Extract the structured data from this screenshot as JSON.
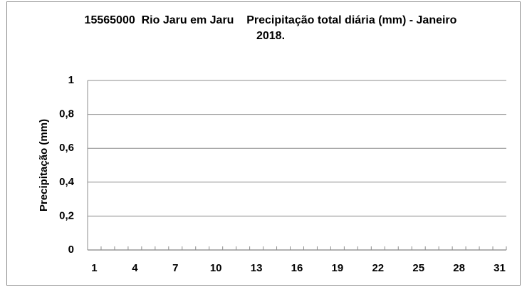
{
  "chart_data": {
    "type": "bar",
    "title": "15565000  Rio Jaru em Jaru    Precipitação total diária (mm) - Janeiro  2018.",
    "y_label": "Precipitação (mm)",
    "categories": [
      "1",
      null,
      null,
      "4",
      null,
      null,
      "7",
      null,
      null,
      "10",
      null,
      null,
      "13",
      null,
      null,
      "16",
      null,
      null,
      "19",
      null,
      null,
      "22",
      null,
      null,
      "25",
      null,
      null,
      "28",
      null,
      null,
      "31"
    ],
    "values": [
      0,
      0,
      0,
      0,
      0,
      0,
      0,
      0,
      0,
      0,
      0,
      0,
      0,
      0,
      0,
      0,
      0,
      0,
      0,
      0,
      0,
      0,
      0,
      0,
      0,
      0,
      0,
      0,
      0,
      0,
      0
    ],
    "color": "#4472c4",
    "ylim": [
      0,
      1
    ],
    "yticks": [
      0,
      {
        "value": 0.2,
        "label": "0,2"
      },
      {
        "value": 0.4,
        "label": "0,4"
      },
      {
        "value": 0.6,
        "label": "0,6"
      },
      {
        "value": 0.8,
        "label": "0,8"
      },
      1
    ],
    "grid": true
  }
}
